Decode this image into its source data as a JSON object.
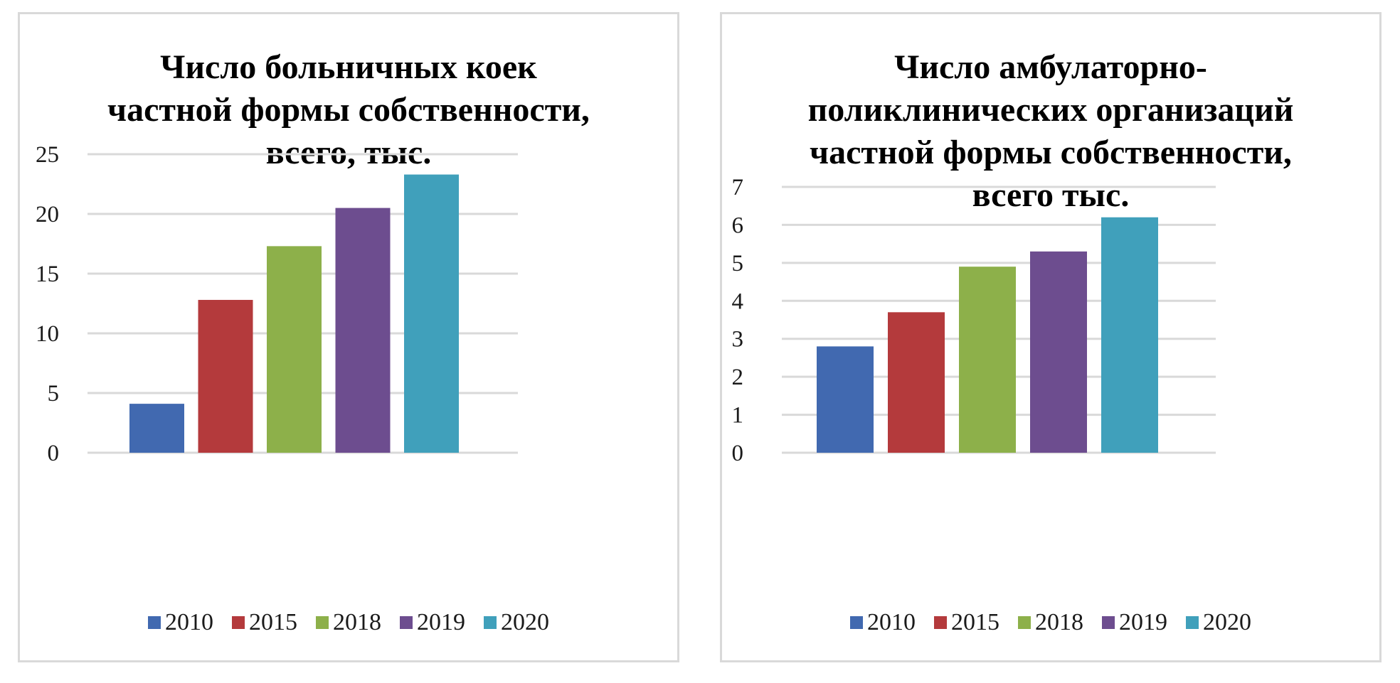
{
  "chart_data": [
    {
      "type": "bar",
      "title": "Число больничных коек\nчастной формы собственности,\nвсего, тыс.",
      "categories": [
        "2010",
        "2015",
        "2018",
        "2019",
        "2020"
      ],
      "values": [
        4.1,
        12.8,
        17.3,
        20.5,
        23.3
      ],
      "ylim": [
        0,
        25
      ],
      "yticks": [
        "0",
        "5",
        "10",
        "15",
        "20",
        "25"
      ],
      "grid": true,
      "legend_position": "bottom"
    },
    {
      "type": "bar",
      "title": "Число амбулаторно-\nполиклинических организаций\nчастной формы собственности,\nвсего тыс.",
      "categories": [
        "2010",
        "2015",
        "2018",
        "2019",
        "2020"
      ],
      "values": [
        2.8,
        3.7,
        4.9,
        5.3,
        6.2
      ],
      "ylim": [
        0,
        7
      ],
      "yticks": [
        "0",
        "1",
        "2",
        "3",
        "4",
        "5",
        "6",
        "7"
      ],
      "grid": true,
      "legend_position": "bottom"
    }
  ],
  "colors": [
    "#4169b0",
    "#b43a3c",
    "#8db04a",
    "#6d4d8f",
    "#40a0bb"
  ],
  "gridline_color": "#d9d9d9"
}
